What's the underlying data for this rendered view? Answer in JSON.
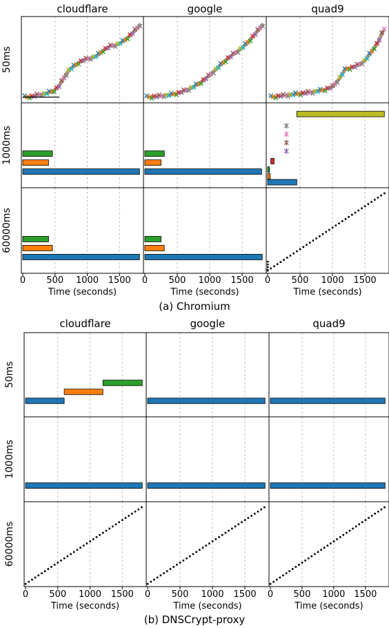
{
  "colors": {
    "blue": "#1f77b4",
    "orange": "#ff7f0e",
    "green": "#2ca02c",
    "red": "#d62728",
    "purple": "#9467bd",
    "brown": "#8c564b",
    "pink": "#e377c2",
    "gray": "#7f7f7f",
    "olive": "#bcbd22",
    "cyan": "#17becf"
  },
  "chart_data": [
    {
      "type": "facet-grid",
      "caption": "(a) Chromium",
      "columns": [
        "cloudflare",
        "google",
        "quad9"
      ],
      "rows": [
        "50ms",
        "1000ms",
        "60000ms"
      ],
      "xlabel": "Time (seconds)",
      "xlim": [
        0,
        1850
      ],
      "xticks": [
        0,
        500,
        1000,
        1500
      ],
      "grid": "vertical dashed",
      "panels": [
        {
          "col": "cloudflare",
          "row": "50ms",
          "type": "scatter",
          "description_series": "many overlapping markers rising along a curve",
          "points": [
            [
              30,
              0.02
            ],
            [
              150,
              0.03
            ],
            [
              260,
              0.05
            ],
            [
              380,
              0.07
            ],
            [
              480,
              0.1
            ],
            [
              560,
              0.16
            ],
            [
              640,
              0.27
            ],
            [
              720,
              0.37
            ],
            [
              800,
              0.42
            ],
            [
              880,
              0.47
            ],
            [
              960,
              0.5
            ],
            [
              1050,
              0.52
            ],
            [
              1150,
              0.55
            ],
            [
              1250,
              0.62
            ],
            [
              1350,
              0.67
            ],
            [
              1450,
              0.69
            ],
            [
              1550,
              0.73
            ],
            [
              1650,
              0.8
            ],
            [
              1750,
              0.88
            ],
            [
              1830,
              0.96
            ]
          ],
          "hline": {
            "from": 0,
            "to": 570,
            "y": 0.02
          }
        },
        {
          "col": "google",
          "row": "50ms",
          "type": "scatter",
          "points": [
            [
              30,
              0.02
            ],
            [
              200,
              0.03
            ],
            [
              400,
              0.05
            ],
            [
              550,
              0.08
            ],
            [
              700,
              0.13
            ],
            [
              850,
              0.2
            ],
            [
              1000,
              0.3
            ],
            [
              1150,
              0.42
            ],
            [
              1300,
              0.53
            ],
            [
              1450,
              0.62
            ],
            [
              1550,
              0.69
            ],
            [
              1650,
              0.78
            ],
            [
              1750,
              0.88
            ],
            [
              1830,
              0.96
            ]
          ]
        },
        {
          "col": "quad9",
          "row": "50ms",
          "type": "scatter",
          "points": [
            [
              50,
              0.02
            ],
            [
              250,
              0.04
            ],
            [
              450,
              0.06
            ],
            [
              650,
              0.08
            ],
            [
              850,
              0.11
            ],
            [
              1000,
              0.15
            ],
            [
              1100,
              0.25
            ],
            [
              1200,
              0.38
            ],
            [
              1300,
              0.4
            ],
            [
              1400,
              0.43
            ],
            [
              1500,
              0.49
            ],
            [
              1600,
              0.6
            ],
            [
              1700,
              0.72
            ],
            [
              1800,
              0.9
            ]
          ]
        },
        {
          "col": "cloudflare",
          "row": "1000ms",
          "type": "gantt",
          "bars": [
            {
              "start": 0,
              "end": 1810,
              "level": 1,
              "color": "blue"
            },
            {
              "start": 0,
              "end": 400,
              "level": 2,
              "color": "orange"
            },
            {
              "start": 0,
              "end": 460,
              "level": 3,
              "color": "green"
            }
          ]
        },
        {
          "col": "google",
          "row": "1000ms",
          "type": "gantt",
          "bars": [
            {
              "start": 0,
              "end": 1800,
              "level": 1,
              "color": "blue"
            },
            {
              "start": 0,
              "end": 250,
              "level": 2,
              "color": "orange"
            },
            {
              "start": 0,
              "end": 300,
              "level": 3,
              "color": "green"
            }
          ]
        },
        {
          "col": "quad9",
          "row": "1000ms",
          "type": "gantt",
          "bars": [
            {
              "start": 0,
              "end": 450,
              "level": 0.5,
              "color": "blue"
            },
            {
              "start": 0,
              "end": 40,
              "level": 1.2,
              "color": "orange"
            },
            {
              "start": 0,
              "end": 30,
              "level": 2.0,
              "color": "green"
            },
            {
              "start": 50,
              "end": 100,
              "level": 3.0,
              "color": "red"
            },
            {
              "start": 450,
              "end": 1800,
              "level": 8.6,
              "color": "olive"
            }
          ],
          "markers": [
            {
              "x": 290,
              "level": 4.2,
              "color": "purple"
            },
            {
              "x": 290,
              "level": 5.2,
              "color": "brown"
            },
            {
              "x": 290,
              "level": 6.2,
              "color": "pink"
            },
            {
              "x": 290,
              "level": 7.2,
              "color": "gray"
            }
          ]
        },
        {
          "col": "cloudflare",
          "row": "60000ms",
          "type": "gantt",
          "bars": [
            {
              "start": 0,
              "end": 1810,
              "level": 1,
              "color": "blue"
            },
            {
              "start": 0,
              "end": 460,
              "level": 2,
              "color": "orange"
            },
            {
              "start": 0,
              "end": 400,
              "level": 3,
              "color": "green"
            }
          ]
        },
        {
          "col": "google",
          "row": "60000ms",
          "type": "gantt",
          "bars": [
            {
              "start": 0,
              "end": 1810,
              "level": 1,
              "color": "blue"
            },
            {
              "start": 0,
              "end": 300,
              "level": 2,
              "color": "orange"
            },
            {
              "start": 0,
              "end": 250,
              "level": 3,
              "color": "green"
            }
          ]
        },
        {
          "col": "quad9",
          "row": "60000ms",
          "type": "dotted-diagonal",
          "from": [
            0,
            0
          ],
          "to": [
            1800,
            1
          ],
          "description_series": "short black dashes, one per query, rising steadily"
        }
      ]
    },
    {
      "type": "facet-grid",
      "caption": "(b) DNSCrypt-proxy",
      "columns": [
        "cloudflare",
        "google",
        "quad9"
      ],
      "rows": [
        "50ms",
        "1000ms",
        "60000ms"
      ],
      "xlabel": "Time (seconds)",
      "xlim": [
        0,
        1850
      ],
      "xticks": [
        0,
        500,
        1000,
        1500
      ],
      "grid": "vertical dashed",
      "panels": [
        {
          "col": "cloudflare",
          "row": "50ms",
          "type": "gantt",
          "bars": [
            {
              "start": 0,
              "end": 600,
              "level": 1,
              "color": "blue"
            },
            {
              "start": 600,
              "end": 1200,
              "level": 2,
              "color": "orange"
            },
            {
              "start": 1200,
              "end": 1810,
              "level": 3,
              "color": "green"
            }
          ]
        },
        {
          "col": "google",
          "row": "50ms",
          "type": "gantt",
          "bars": [
            {
              "start": 0,
              "end": 1810,
              "level": 1,
              "color": "blue"
            }
          ]
        },
        {
          "col": "quad9",
          "row": "50ms",
          "type": "gantt",
          "bars": [
            {
              "start": 0,
              "end": 1810,
              "level": 1,
              "color": "blue"
            }
          ]
        },
        {
          "col": "cloudflare",
          "row": "1000ms",
          "type": "gantt",
          "bars": [
            {
              "start": 0,
              "end": 1810,
              "level": 1,
              "color": "blue"
            }
          ]
        },
        {
          "col": "google",
          "row": "1000ms",
          "type": "gantt",
          "bars": [
            {
              "start": 0,
              "end": 1810,
              "level": 1,
              "color": "blue"
            }
          ]
        },
        {
          "col": "quad9",
          "row": "1000ms",
          "type": "gantt",
          "bars": [
            {
              "start": 0,
              "end": 1810,
              "level": 1,
              "color": "blue"
            }
          ]
        },
        {
          "col": "cloudflare",
          "row": "60000ms",
          "type": "dotted-diagonal",
          "from": [
            0,
            0
          ],
          "to": [
            1800,
            1
          ]
        },
        {
          "col": "google",
          "row": "60000ms",
          "type": "dotted-diagonal",
          "from": [
            0,
            0
          ],
          "to": [
            1800,
            1
          ]
        },
        {
          "col": "quad9",
          "row": "60000ms",
          "type": "dotted-diagonal",
          "from": [
            0,
            0
          ],
          "to": [
            1800,
            1
          ]
        }
      ]
    }
  ]
}
